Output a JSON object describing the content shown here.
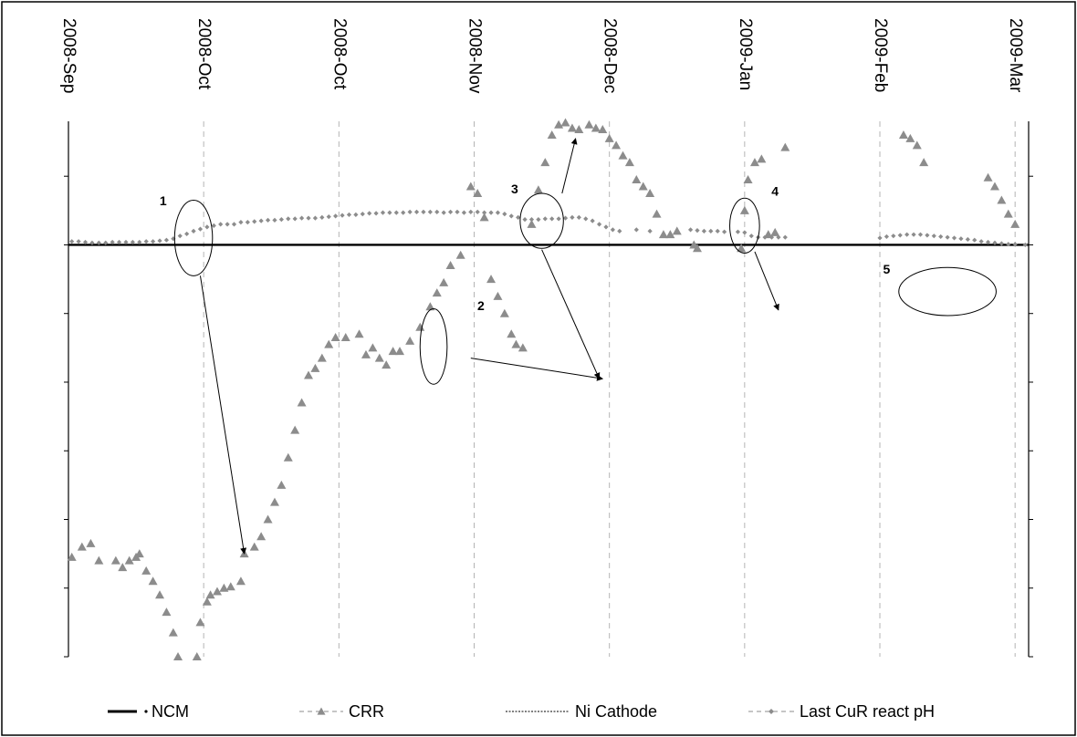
{
  "chart_data": {
    "type": "scatter",
    "title": "",
    "xlabel": "",
    "ylabel": "",
    "x_axis_position": "top",
    "x_tick_labels": [
      "2008-Sep",
      "2008-Oct",
      "2008-Oct",
      "2008-Nov",
      "2008-Dec",
      "2009-Jan",
      "2009-Feb",
      "2009-Mar"
    ],
    "x_tick_values": [
      0,
      2,
      4,
      6,
      8,
      10,
      12,
      14
    ],
    "xlim": [
      0,
      14.2
    ],
    "ylim": [
      -6,
      1.8
    ],
    "y_tick_values": [
      -6,
      -5,
      -4,
      -3,
      -2,
      -1,
      0,
      1
    ],
    "y_tick_labels_shown": false,
    "grid": "vertical-dashed",
    "legend_position": "bottom",
    "series": [
      {
        "name": "NCM",
        "style": "solid-line",
        "color": "#000000",
        "points": [
          [
            0,
            0
          ],
          [
            14.2,
            0
          ]
        ]
      },
      {
        "name": "CRR",
        "style": "triangle-markers",
        "color": "#8c8c8c",
        "points": [
          [
            0.05,
            -4.55
          ],
          [
            0.2,
            -4.4
          ],
          [
            0.33,
            -4.35
          ],
          [
            0.45,
            -4.6
          ],
          [
            0.7,
            -4.6
          ],
          [
            0.8,
            -4.7
          ],
          [
            0.9,
            -4.6
          ],
          [
            1.0,
            -4.55
          ],
          [
            1.05,
            -4.5
          ],
          [
            1.15,
            -4.75
          ],
          [
            1.25,
            -4.9
          ],
          [
            1.35,
            -5.1
          ],
          [
            1.45,
            -5.35
          ],
          [
            1.55,
            -5.65
          ],
          [
            1.62,
            -6.0
          ],
          [
            1.9,
            -6.0
          ],
          [
            1.95,
            -5.5
          ],
          [
            2.05,
            -5.2
          ],
          [
            2.1,
            -5.1
          ],
          [
            2.2,
            -5.05
          ],
          [
            2.3,
            -5.0
          ],
          [
            2.4,
            -4.98
          ],
          [
            2.55,
            -4.9
          ],
          [
            2.6,
            -4.5
          ],
          [
            2.75,
            -4.4
          ],
          [
            2.85,
            -4.25
          ],
          [
            2.95,
            -4.0
          ],
          [
            3.05,
            -3.75
          ],
          [
            3.15,
            -3.5
          ],
          [
            3.25,
            -3.1
          ],
          [
            3.35,
            -2.7
          ],
          [
            3.45,
            -2.3
          ],
          [
            3.55,
            -1.9
          ],
          [
            3.65,
            -1.8
          ],
          [
            3.75,
            -1.65
          ],
          [
            3.85,
            -1.45
          ],
          [
            3.95,
            -1.35
          ],
          [
            4.1,
            -1.35
          ],
          [
            4.3,
            -1.3
          ],
          [
            4.4,
            -1.6
          ],
          [
            4.5,
            -1.5
          ],
          [
            4.6,
            -1.65
          ],
          [
            4.7,
            -1.75
          ],
          [
            4.8,
            -1.55
          ],
          [
            4.9,
            -1.55
          ],
          [
            5.05,
            -1.4
          ],
          [
            5.2,
            -1.2
          ],
          [
            5.35,
            -0.9
          ],
          [
            5.45,
            -0.7
          ],
          [
            5.55,
            -0.55
          ],
          [
            5.65,
            -0.3
          ],
          [
            5.8,
            -0.15
          ],
          [
            5.95,
            0.85
          ],
          [
            6.05,
            0.75
          ],
          [
            6.15,
            0.4
          ],
          [
            6.25,
            -0.5
          ],
          [
            6.35,
            -0.75
          ],
          [
            6.45,
            -1.0
          ],
          [
            6.55,
            -1.3
          ],
          [
            6.62,
            -1.45
          ],
          [
            6.72,
            -1.5
          ],
          [
            6.85,
            0.3
          ],
          [
            6.95,
            0.8
          ],
          [
            7.05,
            1.2
          ],
          [
            7.15,
            1.6
          ],
          [
            7.25,
            1.75
          ],
          [
            7.35,
            1.78
          ],
          [
            7.45,
            1.7
          ],
          [
            7.55,
            1.68
          ],
          [
            7.7,
            1.75
          ],
          [
            7.8,
            1.7
          ],
          [
            7.9,
            1.68
          ],
          [
            8.0,
            1.55
          ],
          [
            8.1,
            1.45
          ],
          [
            8.2,
            1.3
          ],
          [
            8.3,
            1.2
          ],
          [
            8.4,
            0.95
          ],
          [
            8.5,
            0.85
          ],
          [
            8.6,
            0.75
          ],
          [
            8.7,
            0.45
          ],
          [
            8.8,
            0.15
          ],
          [
            8.9,
            0.15
          ],
          [
            9.0,
            0.2
          ],
          [
            9.25,
            0.0
          ],
          [
            9.3,
            -0.05
          ],
          [
            9.95,
            -0.05
          ],
          [
            10.0,
            0.5
          ],
          [
            10.05,
            0.95
          ],
          [
            10.15,
            1.2
          ],
          [
            10.25,
            1.25
          ],
          [
            10.35,
            0.15
          ],
          [
            10.45,
            0.18
          ],
          [
            10.6,
            1.42
          ],
          [
            12.35,
            1.6
          ],
          [
            12.45,
            1.55
          ],
          [
            12.55,
            1.45
          ],
          [
            12.65,
            1.2
          ],
          [
            13.6,
            0.98
          ],
          [
            13.7,
            0.85
          ],
          [
            13.8,
            0.65
          ],
          [
            13.9,
            0.45
          ],
          [
            14.0,
            0.3
          ]
        ]
      },
      {
        "name": "Ni Cathode",
        "style": "dotted-line",
        "color": "#000000",
        "points": []
      },
      {
        "name": "Last CuR react pH",
        "style": "diamond-markers-dashed",
        "color": "#8c8c8c",
        "points": [
          [
            0.05,
            0.05
          ],
          [
            0.15,
            0.05
          ],
          [
            0.25,
            0.04
          ],
          [
            0.35,
            0.03
          ],
          [
            0.45,
            0.03
          ],
          [
            0.55,
            0.03
          ],
          [
            0.65,
            0.04
          ],
          [
            0.75,
            0.04
          ],
          [
            0.85,
            0.04
          ],
          [
            0.95,
            0.04
          ],
          [
            1.05,
            0.04
          ],
          [
            1.15,
            0.05
          ],
          [
            1.25,
            0.05
          ],
          [
            1.35,
            0.06
          ],
          [
            1.45,
            0.07
          ],
          [
            1.55,
            0.09
          ],
          [
            1.65,
            0.13
          ],
          [
            1.75,
            0.16
          ],
          [
            1.85,
            0.2
          ],
          [
            1.95,
            0.23
          ],
          [
            2.05,
            0.26
          ],
          [
            2.15,
            0.28
          ],
          [
            2.25,
            0.3
          ],
          [
            2.35,
            0.3
          ],
          [
            2.45,
            0.3
          ],
          [
            2.55,
            0.33
          ],
          [
            2.65,
            0.33
          ],
          [
            2.75,
            0.34
          ],
          [
            2.85,
            0.35
          ],
          [
            2.95,
            0.36
          ],
          [
            3.05,
            0.36
          ],
          [
            3.15,
            0.37
          ],
          [
            3.25,
            0.38
          ],
          [
            3.35,
            0.38
          ],
          [
            3.45,
            0.39
          ],
          [
            3.55,
            0.39
          ],
          [
            3.65,
            0.39
          ],
          [
            3.75,
            0.4
          ],
          [
            3.85,
            0.41
          ],
          [
            3.95,
            0.42
          ],
          [
            4.05,
            0.43
          ],
          [
            4.15,
            0.44
          ],
          [
            4.25,
            0.44
          ],
          [
            4.35,
            0.45
          ],
          [
            4.45,
            0.46
          ],
          [
            4.55,
            0.46
          ],
          [
            4.65,
            0.47
          ],
          [
            4.75,
            0.47
          ],
          [
            4.85,
            0.47
          ],
          [
            4.95,
            0.47
          ],
          [
            5.05,
            0.48
          ],
          [
            5.15,
            0.48
          ],
          [
            5.25,
            0.48
          ],
          [
            5.35,
            0.48
          ],
          [
            5.45,
            0.48
          ],
          [
            5.55,
            0.47
          ],
          [
            5.65,
            0.48
          ],
          [
            5.75,
            0.48
          ],
          [
            5.85,
            0.47
          ],
          [
            5.95,
            0.48
          ],
          [
            6.05,
            0.48
          ],
          [
            6.15,
            0.47
          ],
          [
            6.25,
            0.47
          ],
          [
            6.35,
            0.47
          ],
          [
            6.45,
            0.45
          ],
          [
            6.55,
            0.42
          ],
          [
            6.65,
            0.4
          ],
          [
            6.75,
            0.37
          ],
          [
            6.85,
            0.37
          ],
          [
            6.95,
            0.37
          ],
          [
            7.05,
            0.38
          ],
          [
            7.15,
            0.38
          ],
          [
            7.25,
            0.38
          ],
          [
            7.35,
            0.39
          ],
          [
            7.45,
            0.4
          ],
          [
            7.55,
            0.4
          ],
          [
            7.65,
            0.38
          ],
          [
            7.75,
            0.35
          ],
          [
            7.85,
            0.3
          ],
          [
            7.95,
            0.26
          ],
          [
            8.05,
            0.22
          ],
          [
            8.15,
            0.2
          ],
          [
            8.4,
            0.22
          ],
          [
            8.6,
            0.2
          ],
          [
            9.2,
            0.22
          ],
          [
            9.3,
            0.21
          ],
          [
            9.4,
            0.2
          ],
          [
            9.5,
            0.2
          ],
          [
            9.6,
            0.2
          ],
          [
            9.7,
            0.19
          ],
          [
            9.9,
            0.19
          ],
          [
            10.0,
            0.18
          ],
          [
            10.1,
            0.13
          ],
          [
            10.2,
            0.11
          ],
          [
            10.3,
            0.11
          ],
          [
            10.4,
            0.11
          ],
          [
            10.5,
            0.11
          ],
          [
            10.6,
            0.11
          ],
          [
            12.0,
            0.1
          ],
          [
            12.1,
            0.12
          ],
          [
            12.2,
            0.13
          ],
          [
            12.3,
            0.14
          ],
          [
            12.4,
            0.15
          ],
          [
            12.5,
            0.15
          ],
          [
            12.6,
            0.15
          ],
          [
            12.7,
            0.14
          ],
          [
            12.8,
            0.13
          ],
          [
            12.9,
            0.12
          ],
          [
            13.0,
            0.11
          ],
          [
            13.1,
            0.1
          ],
          [
            13.2,
            0.09
          ],
          [
            13.3,
            0.08
          ],
          [
            13.4,
            0.07
          ],
          [
            13.5,
            0.05
          ],
          [
            13.6,
            0.04
          ],
          [
            13.7,
            0.03
          ],
          [
            13.8,
            0.02
          ],
          [
            13.9,
            0.01
          ],
          [
            14.0,
            0.01
          ],
          [
            14.15,
            0.0
          ]
        ]
      }
    ],
    "annotations": [
      {
        "label": "1",
        "x": 1.85,
        "y": 0.1,
        "rx": 0.28,
        "ry": 0.55,
        "label_x": 1.4,
        "label_y": 0.58
      },
      {
        "label": "2",
        "x": 5.4,
        "y": -1.48,
        "rx": 0.2,
        "ry": 0.55,
        "label_x": 6.1,
        "label_y": -0.95
      },
      {
        "label": "3",
        "x": 7.0,
        "y": 0.35,
        "rx": 0.32,
        "ry": 0.4,
        "label_x": 6.6,
        "label_y": 0.75
      },
      {
        "label": "4",
        "x": 10.0,
        "y": 0.28,
        "rx": 0.22,
        "ry": 0.4,
        "label_x": 10.45,
        "label_y": 0.72
      },
      {
        "label": "5",
        "x": 13.0,
        "y": -0.68,
        "rx": 0.72,
        "ry": 0.35,
        "label_x": 12.1,
        "label_y": -0.42
      }
    ],
    "arrows": [
      {
        "from": [
          1.95,
          -0.45
        ],
        "to": [
          2.6,
          -4.5
        ]
      },
      {
        "from": [
          5.95,
          -1.65
        ],
        "to": [
          7.9,
          -1.95
        ]
      },
      {
        "from": [
          7.0,
          -0.07
        ],
        "to": [
          7.85,
          -1.95
        ]
      },
      {
        "from": [
          7.3,
          0.75
        ],
        "to": [
          7.5,
          1.55
        ]
      },
      {
        "from": [
          10.15,
          -0.1
        ],
        "to": [
          10.5,
          -0.95
        ]
      }
    ]
  }
}
